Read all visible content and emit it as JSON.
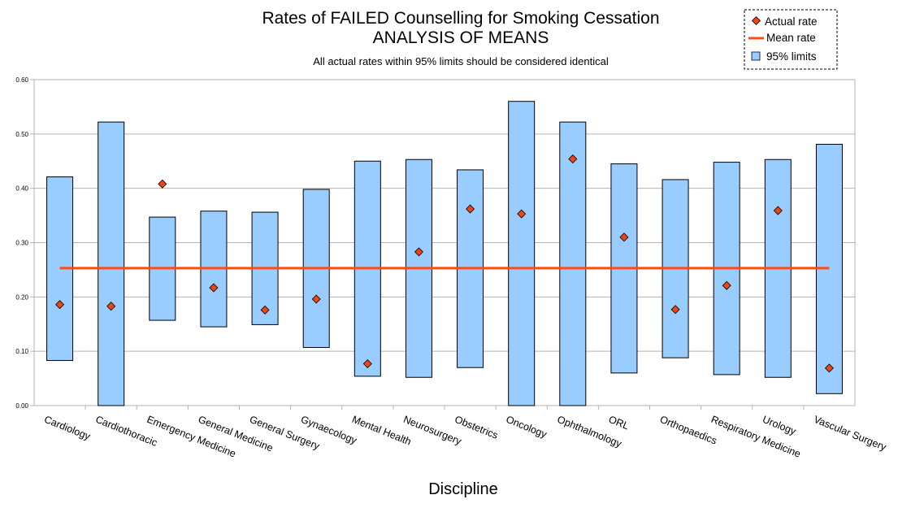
{
  "chart_data": {
    "type": "bar",
    "title": "Rates of FAILED Counselling for Smoking Cessation",
    "title_line2": "ANALYSIS OF MEANS",
    "subtitle": "All actual rates within 95% limits should be considered identical",
    "xlabel": "Discipline",
    "ylabel": "",
    "ylim": [
      0,
      0.6
    ],
    "yticks": [
      "0.00",
      "0.10",
      "0.20",
      "0.30",
      "0.40",
      "0.50",
      "0.60"
    ],
    "grid": true,
    "legend_position": "top-right",
    "categories": [
      "Cardiology",
      "Cardiothoracic",
      "Emergency Medicine",
      "General Medicine",
      "General Surgery",
      "Gynaecology",
      "Mental Health",
      "Neurosurgery",
      "Obstetrics",
      "Oncology",
      "Ophthalmology",
      "ORL",
      "Orthopaedics",
      "Respiratory Medicine",
      "Urology",
      "Vascular Surgery"
    ],
    "limits_lower": [
      0.083,
      0.0,
      0.157,
      0.145,
      0.149,
      0.107,
      0.054,
      0.052,
      0.07,
      0.0,
      0.0,
      0.06,
      0.088,
      0.057,
      0.052,
      0.022
    ],
    "limits_upper": [
      0.421,
      0.522,
      0.347,
      0.358,
      0.356,
      0.398,
      0.45,
      0.453,
      0.434,
      0.56,
      0.522,
      0.445,
      0.416,
      0.448,
      0.453,
      0.481
    ],
    "actual_rate": [
      0.186,
      0.183,
      0.408,
      0.217,
      0.176,
      0.196,
      0.077,
      0.283,
      0.362,
      0.353,
      0.454,
      0.31,
      0.177,
      0.221,
      0.359,
      0.069
    ],
    "mean_rate": 0.253,
    "series": [
      {
        "name": "Actual rate",
        "kind": "marker",
        "color": "#ee4411"
      },
      {
        "name": "Mean rate",
        "kind": "line",
        "color": "#ff4d12"
      },
      {
        "name": "95% limits",
        "kind": "box",
        "color": "#99ccff"
      }
    ]
  }
}
